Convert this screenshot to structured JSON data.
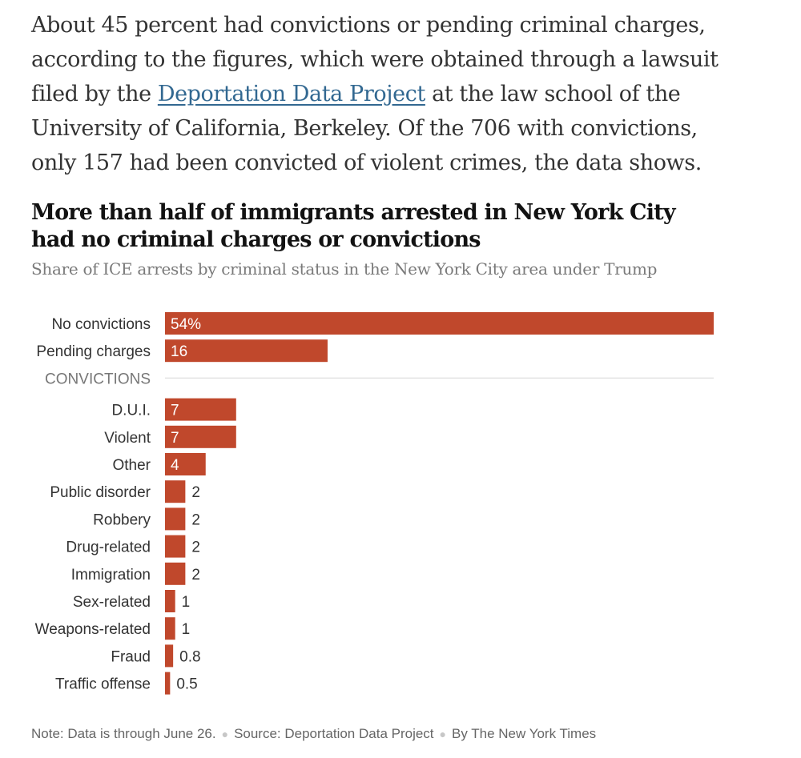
{
  "article": {
    "paragraph_before": "About 45 percent had convictions or pending criminal charges, according to the figures, which were obtained through a lawsuit filed by the ",
    "link_text": "Deportation Data Project",
    "paragraph_after": " at the law school of the University of California, Berkeley. Of the 706 with convictions, only 157 had been convicted of violent crimes, the data shows."
  },
  "chart": {
    "title": "More than half of immigrants arrested in New York City had no criminal charges or convictions",
    "subtitle": "Share of ICE arrests by criminal status in the New York City area under Trump",
    "section_label": "CONVICTIONS",
    "bar_color": "#c0482c"
  },
  "chart_data": {
    "type": "bar",
    "orientation": "horizontal",
    "unit": "percent",
    "groups": [
      {
        "label": "",
        "categories": [
          "No convictions",
          "Pending charges"
        ],
        "values": [
          54,
          16
        ],
        "value_labels": [
          "54%",
          "16"
        ]
      },
      {
        "label": "CONVICTIONS",
        "categories": [
          "D.U.I.",
          "Violent",
          "Other",
          "Public disorder",
          "Robbery",
          "Drug-related",
          "Immigration",
          "Sex-related",
          "Weapons-related",
          "Fraud",
          "Traffic offense"
        ],
        "values": [
          7,
          7,
          4,
          2,
          2,
          2,
          2,
          1,
          1,
          0.8,
          0.5
        ],
        "value_labels": [
          "7",
          "7",
          "4",
          "2",
          "2",
          "2",
          "2",
          "1",
          "1",
          "0.8",
          "0.5"
        ]
      }
    ],
    "xlim": [
      0,
      54
    ],
    "grid": false,
    "legend": "none"
  },
  "footer": {
    "note": "Note: Data is through June 26.",
    "source": "Source: Deportation Data Project",
    "byline": "By The New York Times"
  }
}
